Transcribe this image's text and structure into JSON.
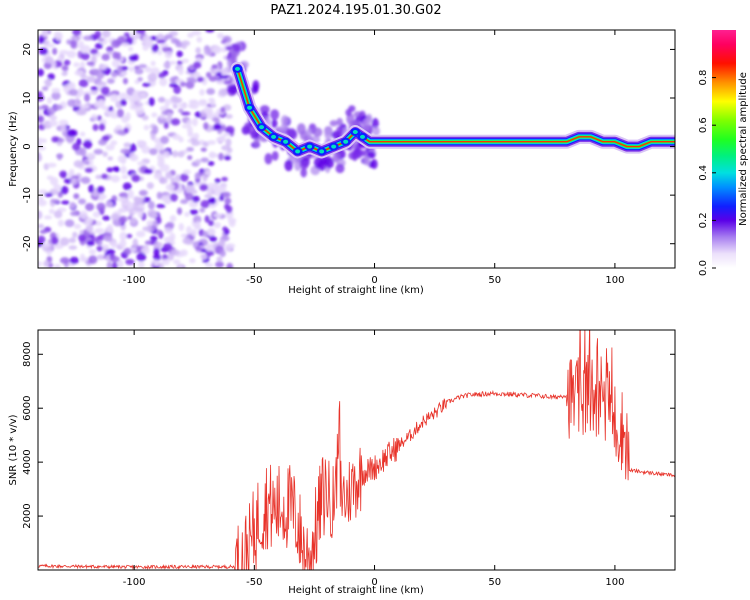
{
  "figure": {
    "title": "PAZ1.2024.195.01.30.G02"
  },
  "chart_data": [
    {
      "type": "heatmap",
      "xlabel": "Height of straight line (km)",
      "ylabel": "Frequency (Hz)",
      "xlim": [
        -140,
        125
      ],
      "ylim": [
        -25,
        24
      ],
      "xticks": [
        -100,
        -50,
        0,
        50,
        100
      ],
      "yticks": [
        20,
        10,
        0,
        -10,
        -20
      ],
      "ridge": {
        "x": [
          -57,
          -52,
          -47,
          -42,
          -37,
          -32,
          -27,
          -22,
          -17,
          -12,
          -8,
          -5,
          -2,
          0,
          10,
          20,
          30,
          40,
          50,
          60,
          70,
          80,
          85,
          90,
          95,
          100,
          105,
          110,
          115,
          120,
          125
        ],
        "y": [
          16,
          8,
          4,
          2,
          1,
          -1,
          0,
          -1,
          0,
          1,
          3,
          2,
          1,
          1,
          1,
          1,
          1,
          1,
          1,
          1,
          1,
          1,
          2,
          2,
          1,
          1,
          0,
          0,
          1,
          1,
          1
        ]
      },
      "colorbar": {
        "label": "Normalized spectral amplitude",
        "range": [
          0.0,
          1.0
        ],
        "ticks": [
          0.0,
          0.2,
          0.4,
          0.6,
          0.8
        ],
        "colormap": "gist_ncar-like"
      },
      "grid": false
    },
    {
      "type": "line",
      "xlabel": "Height of straight line (km)",
      "ylabel": "SNR (10 * v/v)",
      "xlim": [
        -140,
        125
      ],
      "ylim": [
        0,
        8900
      ],
      "xticks": [
        -100,
        -50,
        0,
        50,
        100
      ],
      "yticks": [
        2000,
        4000,
        6000,
        8000
      ],
      "color": "#e8332a",
      "series": [
        {
          "x": [
            -140,
            -100,
            -70,
            -57,
            -52,
            -48,
            -45,
            -42,
            -38,
            -35,
            -32,
            -30,
            -27,
            -25,
            -22,
            -20,
            -18,
            -15,
            -12,
            -10,
            -5,
            0,
            5,
            10,
            15,
            20,
            25,
            30,
            35,
            40,
            50,
            60,
            70,
            75,
            80,
            85,
            90,
            95,
            100,
            103,
            105,
            106,
            110,
            115,
            120,
            125
          ],
          "values": [
            150,
            110,
            120,
            120,
            800,
            2000,
            2500,
            2200,
            2400,
            2300,
            1800,
            800,
            400,
            1200,
            2600,
            3000,
            2500,
            3200,
            2600,
            3000,
            3600,
            3800,
            4200,
            4600,
            5000,
            5500,
            5800,
            6200,
            6400,
            6500,
            6550,
            6500,
            6450,
            6400,
            6500,
            6300,
            6500,
            6600,
            5500,
            5200,
            4800,
            3700,
            3650,
            3600,
            3550,
            3500
          ]
        }
      ],
      "grid": false
    }
  ]
}
